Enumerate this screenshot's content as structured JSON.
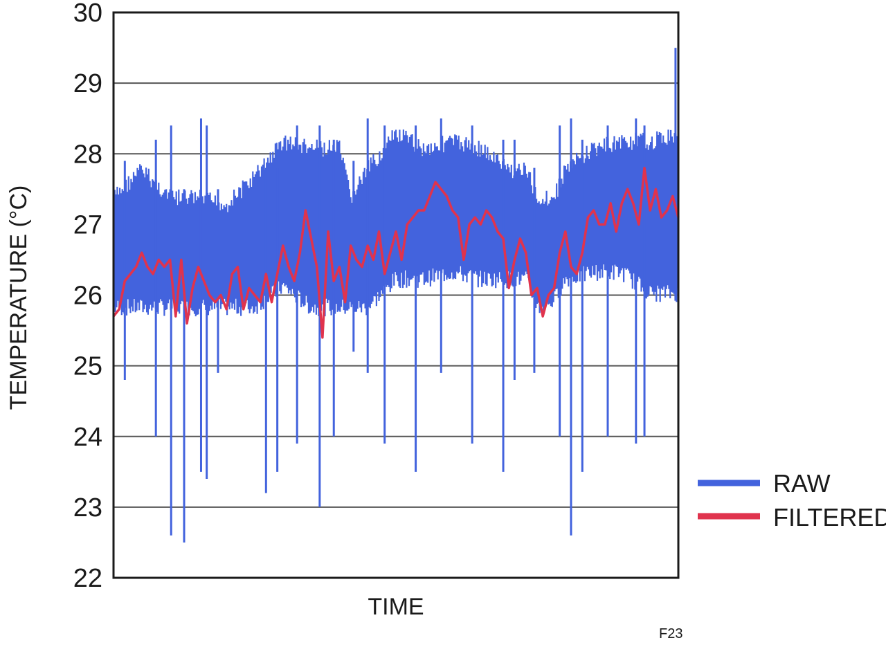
{
  "chart_data": {
    "type": "line",
    "title": "",
    "xlabel": "TIME",
    "ylabel": "TEMPERATURE (°C)",
    "ylim": [
      22,
      30
    ],
    "yticks": [
      "22",
      "23",
      "24",
      "25",
      "26",
      "27",
      "28",
      "29",
      "30"
    ],
    "grid": true,
    "legend_position": "right",
    "figure_tag": "F23",
    "series": [
      {
        "name": "RAW",
        "color": "#4363dd",
        "band": [
          {
            "x": 0,
            "lo": 25.7,
            "hi": 27.5
          },
          {
            "x": 5,
            "lo": 25.7,
            "hi": 27.9
          },
          {
            "x": 10,
            "lo": 25.7,
            "hi": 27.5
          },
          {
            "x": 15,
            "lo": 25.7,
            "hi": 27.5
          },
          {
            "x": 20,
            "lo": 25.7,
            "hi": 27.4
          },
          {
            "x": 25,
            "lo": 25.7,
            "hi": 27.8
          },
          {
            "x": 30,
            "lo": 26.0,
            "hi": 28.3
          },
          {
            "x": 35,
            "lo": 25.7,
            "hi": 28.2
          },
          {
            "x": 40,
            "lo": 25.7,
            "hi": 28.2
          },
          {
            "x": 42,
            "lo": 25.7,
            "hi": 27.5
          },
          {
            "x": 45,
            "lo": 25.7,
            "hi": 27.9
          },
          {
            "x": 50,
            "lo": 26.1,
            "hi": 28.4
          },
          {
            "x": 55,
            "lo": 26.1,
            "hi": 28.2
          },
          {
            "x": 60,
            "lo": 26.2,
            "hi": 28.3
          },
          {
            "x": 65,
            "lo": 26.1,
            "hi": 28.2
          },
          {
            "x": 70,
            "lo": 26.1,
            "hi": 27.9
          },
          {
            "x": 73,
            "lo": 26.1,
            "hi": 27.9
          },
          {
            "x": 75,
            "lo": 25.7,
            "hi": 27.5
          },
          {
            "x": 78,
            "lo": 25.8,
            "hi": 27.5
          },
          {
            "x": 80,
            "lo": 26.1,
            "hi": 27.9
          },
          {
            "x": 85,
            "lo": 26.2,
            "hi": 28.2
          },
          {
            "x": 90,
            "lo": 26.2,
            "hi": 28.3
          },
          {
            "x": 95,
            "lo": 25.9,
            "hi": 28.3
          },
          {
            "x": 100,
            "lo": 25.9,
            "hi": 28.4
          }
        ],
        "spikes": [
          {
            "x": 2,
            "lo": 24.8,
            "hi": 27.9
          },
          {
            "x": 7.5,
            "lo": 24.0,
            "hi": 28.2
          },
          {
            "x": 10.2,
            "lo": 22.6,
            "hi": 28.4
          },
          {
            "x": 12.5,
            "lo": 22.5,
            "hi": 27.5
          },
          {
            "x": 15.5,
            "lo": 23.5,
            "hi": 28.5
          },
          {
            "x": 16.5,
            "lo": 23.4,
            "hi": 28.4
          },
          {
            "x": 18.5,
            "lo": 24.9,
            "hi": 27.5
          },
          {
            "x": 27,
            "lo": 23.2,
            "hi": 27.8
          },
          {
            "x": 29,
            "lo": 23.5,
            "hi": 27.8
          },
          {
            "x": 32.5,
            "lo": 23.9,
            "hi": 28.4
          },
          {
            "x": 36.5,
            "lo": 23.0,
            "hi": 28.4
          },
          {
            "x": 39,
            "lo": 24.0,
            "hi": 28.2
          },
          {
            "x": 42.5,
            "lo": 25.2,
            "hi": 27.9
          },
          {
            "x": 45,
            "lo": 24.9,
            "hi": 28.5
          },
          {
            "x": 48,
            "lo": 23.9,
            "hi": 28.4
          },
          {
            "x": 53.5,
            "lo": 23.5,
            "hi": 28.4
          },
          {
            "x": 58,
            "lo": 24.9,
            "hi": 28.5
          },
          {
            "x": 63.5,
            "lo": 23.9,
            "hi": 28.4
          },
          {
            "x": 69,
            "lo": 23.5,
            "hi": 28.2
          },
          {
            "x": 71,
            "lo": 24.8,
            "hi": 28.2
          },
          {
            "x": 74.5,
            "lo": 24.9,
            "hi": 27.8
          },
          {
            "x": 79,
            "lo": 24.0,
            "hi": 28.4
          },
          {
            "x": 81,
            "lo": 22.6,
            "hi": 28.5
          },
          {
            "x": 83,
            "lo": 23.5,
            "hi": 28.2
          },
          {
            "x": 87.5,
            "lo": 24.0,
            "hi": 28.4
          },
          {
            "x": 92.5,
            "lo": 23.9,
            "hi": 28.5
          },
          {
            "x": 94,
            "lo": 24.0,
            "hi": 28.4
          },
          {
            "x": 99.5,
            "lo": 26.0,
            "hi": 29.5
          }
        ]
      },
      {
        "name": "FILTERED",
        "color": "#e0334d",
        "points": [
          {
            "x": 0,
            "y": 25.7
          },
          {
            "x": 1,
            "y": 25.8
          },
          {
            "x": 2,
            "y": 26.2
          },
          {
            "x": 3,
            "y": 26.3
          },
          {
            "x": 4,
            "y": 26.4
          },
          {
            "x": 5,
            "y": 26.6
          },
          {
            "x": 6,
            "y": 26.4
          },
          {
            "x": 7,
            "y": 26.3
          },
          {
            "x": 8,
            "y": 26.5
          },
          {
            "x": 9,
            "y": 26.4
          },
          {
            "x": 10,
            "y": 26.5
          },
          {
            "x": 11,
            "y": 25.7
          },
          {
            "x": 12,
            "y": 26.5
          },
          {
            "x": 13,
            "y": 25.6
          },
          {
            "x": 14,
            "y": 26.1
          },
          {
            "x": 15,
            "y": 26.4
          },
          {
            "x": 16,
            "y": 26.2
          },
          {
            "x": 17,
            "y": 26.0
          },
          {
            "x": 18,
            "y": 25.9
          },
          {
            "x": 19,
            "y": 26.0
          },
          {
            "x": 20,
            "y": 25.8
          },
          {
            "x": 21,
            "y": 26.3
          },
          {
            "x": 22,
            "y": 26.4
          },
          {
            "x": 23,
            "y": 25.8
          },
          {
            "x": 24,
            "y": 26.1
          },
          {
            "x": 25,
            "y": 26.0
          },
          {
            "x": 26,
            "y": 25.9
          },
          {
            "x": 27,
            "y": 26.3
          },
          {
            "x": 28,
            "y": 25.9
          },
          {
            "x": 29,
            "y": 26.3
          },
          {
            "x": 30,
            "y": 26.7
          },
          {
            "x": 31,
            "y": 26.4
          },
          {
            "x": 32,
            "y": 26.2
          },
          {
            "x": 33,
            "y": 26.6
          },
          {
            "x": 34,
            "y": 27.2
          },
          {
            "x": 35,
            "y": 26.8
          },
          {
            "x": 36,
            "y": 26.4
          },
          {
            "x": 37,
            "y": 25.4
          },
          {
            "x": 38,
            "y": 26.9
          },
          {
            "x": 39,
            "y": 26.2
          },
          {
            "x": 40,
            "y": 26.4
          },
          {
            "x": 41,
            "y": 25.9
          },
          {
            "x": 42,
            "y": 26.7
          },
          {
            "x": 43,
            "y": 26.5
          },
          {
            "x": 44,
            "y": 26.4
          },
          {
            "x": 45,
            "y": 26.7
          },
          {
            "x": 46,
            "y": 26.5
          },
          {
            "x": 47,
            "y": 26.9
          },
          {
            "x": 48,
            "y": 26.3
          },
          {
            "x": 49,
            "y": 26.6
          },
          {
            "x": 50,
            "y": 26.9
          },
          {
            "x": 51,
            "y": 26.5
          },
          {
            "x": 52,
            "y": 27.0
          },
          {
            "x": 53,
            "y": 27.1
          },
          {
            "x": 54,
            "y": 27.2
          },
          {
            "x": 55,
            "y": 27.2
          },
          {
            "x": 56,
            "y": 27.4
          },
          {
            "x": 57,
            "y": 27.6
          },
          {
            "x": 58,
            "y": 27.5
          },
          {
            "x": 59,
            "y": 27.4
          },
          {
            "x": 60,
            "y": 27.2
          },
          {
            "x": 61,
            "y": 27.1
          },
          {
            "x": 62,
            "y": 26.5
          },
          {
            "x": 63,
            "y": 27.0
          },
          {
            "x": 64,
            "y": 27.1
          },
          {
            "x": 65,
            "y": 27.0
          },
          {
            "x": 66,
            "y": 27.2
          },
          {
            "x": 67,
            "y": 27.1
          },
          {
            "x": 68,
            "y": 26.9
          },
          {
            "x": 69,
            "y": 26.8
          },
          {
            "x": 70,
            "y": 26.1
          },
          {
            "x": 71,
            "y": 26.5
          },
          {
            "x": 72,
            "y": 26.8
          },
          {
            "x": 73,
            "y": 26.6
          },
          {
            "x": 74,
            "y": 26.0
          },
          {
            "x": 75,
            "y": 26.1
          },
          {
            "x": 76,
            "y": 25.7
          },
          {
            "x": 77,
            "y": 26.0
          },
          {
            "x": 78,
            "y": 26.1
          },
          {
            "x": 79,
            "y": 26.6
          },
          {
            "x": 80,
            "y": 26.9
          },
          {
            "x": 81,
            "y": 26.4
          },
          {
            "x": 82,
            "y": 26.3
          },
          {
            "x": 83,
            "y": 26.6
          },
          {
            "x": 84,
            "y": 27.1
          },
          {
            "x": 85,
            "y": 27.2
          },
          {
            "x": 86,
            "y": 27.0
          },
          {
            "x": 87,
            "y": 27.0
          },
          {
            "x": 88,
            "y": 27.3
          },
          {
            "x": 89,
            "y": 26.9
          },
          {
            "x": 90,
            "y": 27.3
          },
          {
            "x": 91,
            "y": 27.5
          },
          {
            "x": 92,
            "y": 27.3
          },
          {
            "x": 93,
            "y": 27.0
          },
          {
            "x": 94,
            "y": 27.8
          },
          {
            "x": 95,
            "y": 27.2
          },
          {
            "x": 96,
            "y": 27.5
          },
          {
            "x": 97,
            "y": 27.1
          },
          {
            "x": 98,
            "y": 27.2
          },
          {
            "x": 99,
            "y": 27.4
          },
          {
            "x": 100,
            "y": 27.1
          }
        ]
      }
    ]
  }
}
